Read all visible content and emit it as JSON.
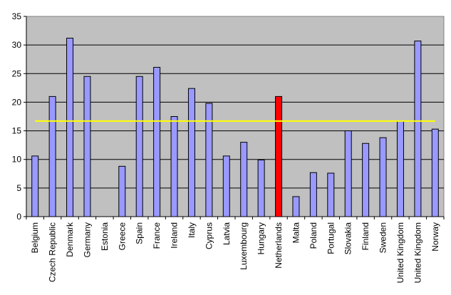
{
  "chart_data": {
    "type": "bar",
    "categories": [
      "Belgium",
      "Czech Republic",
      "Denmark",
      "Germany",
      "Estonia",
      "Greece",
      "Spain",
      "France",
      "Ireland",
      "Italy",
      "Cyprus",
      "Latvia",
      "Luxembourg",
      "Hungary",
      "Netherlands",
      "Malta",
      "Poland",
      "Portugal",
      "Slovakia",
      "Finland",
      "Sweden",
      "United Kingdom",
      "United Kingdom",
      "Norway"
    ],
    "values": [
      10.6,
      21.0,
      31.2,
      24.5,
      0,
      8.8,
      24.5,
      26.1,
      17.5,
      22.4,
      19.8,
      10.6,
      13.0,
      9.9,
      21.0,
      3.5,
      7.7,
      7.6,
      15.0,
      12.8,
      13.8,
      16.7,
      30.7,
      15.3
    ],
    "highlight_category": "Netherlands",
    "reference_line": 16.7,
    "ylim": [
      0,
      35
    ],
    "yticks": [
      0,
      5,
      10,
      15,
      20,
      25,
      30,
      35
    ],
    "grid": true,
    "title": "",
    "xlabel": "",
    "ylabel": "",
    "colors": {
      "bar": "#9999FF",
      "highlight": "#FF0000",
      "reference_line": "#FFFF00",
      "plot_background": "#C0C0C0",
      "gridline": "#000000"
    }
  }
}
